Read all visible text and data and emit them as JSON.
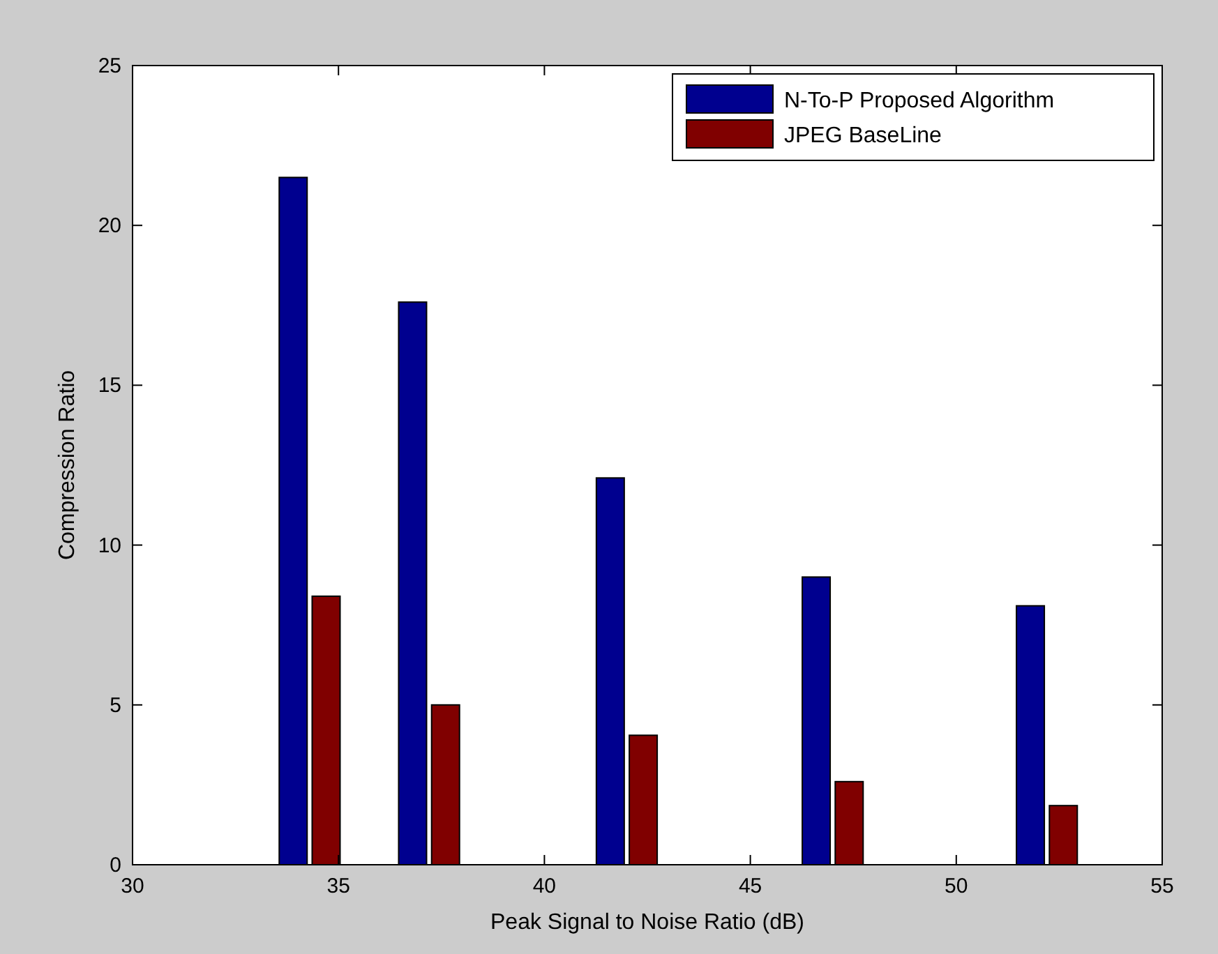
{
  "chart_data": {
    "type": "bar",
    "xlabel": "Peak Signal to Noise Ratio (dB)",
    "ylabel": "Compression Ratio",
    "xlim": [
      30,
      55
    ],
    "xticks": [
      30,
      35,
      40,
      45,
      50,
      55
    ],
    "ylim": [
      0,
      25
    ],
    "yticks": [
      0,
      5,
      10,
      15,
      20,
      25
    ],
    "legend": "top right",
    "series": [
      {
        "name": "N-To-P Proposed Algorithm",
        "color": "#00008f",
        "x": [
          33.9,
          36.8,
          41.6,
          46.6,
          51.8
        ],
        "values": [
          21.5,
          17.6,
          12.1,
          9.0,
          8.1
        ]
      },
      {
        "name": "JPEG BaseLine",
        "color": "#800000",
        "x": [
          34.7,
          37.6,
          42.4,
          47.4,
          52.6
        ],
        "values": [
          8.4,
          5.0,
          4.05,
          2.6,
          1.85
        ]
      }
    ]
  }
}
